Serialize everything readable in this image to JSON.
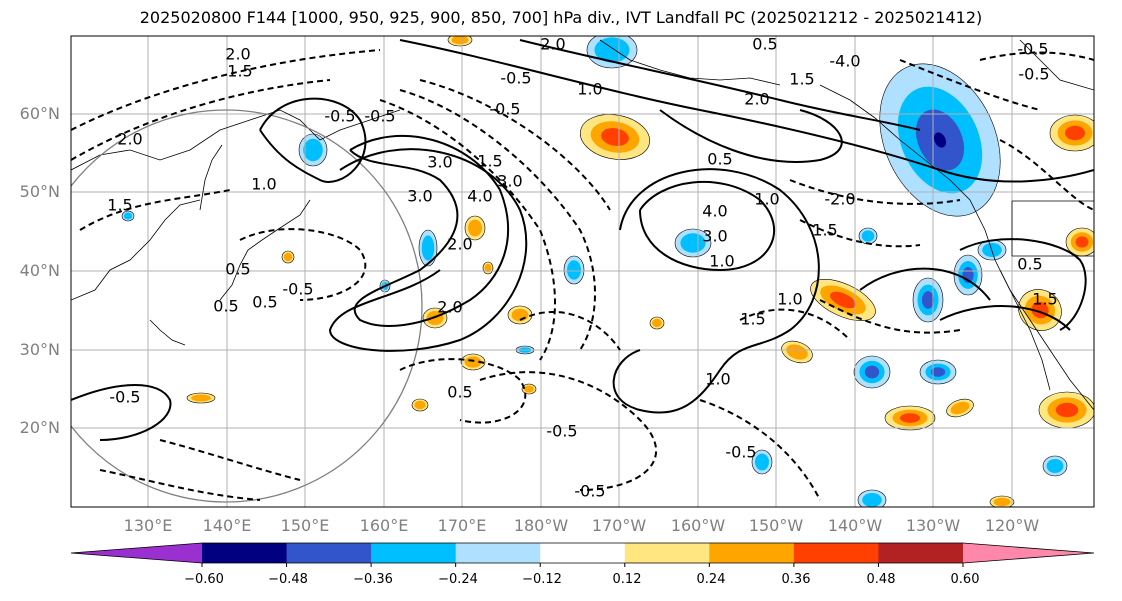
{
  "title": "2025020800 F144 [1000, 950, 925, 900, 850, 700] hPa div., IVT Landfall PC (2025021212 - 2025021412)",
  "lat_labels": [
    "60°N",
    "50°N",
    "40°N",
    "30°N",
    "20°N"
  ],
  "lon_labels": [
    "130°E",
    "140°E",
    "150°E",
    "160°E",
    "170°E",
    "180°W",
    "170°W",
    "160°W",
    "150°W",
    "140°W",
    "130°W",
    "120°W"
  ],
  "contour_labels": [
    "2.0",
    "1.5",
    "2.0",
    "1.5",
    "-0.5",
    "1.0",
    "2.0",
    "-0.5",
    "3.0",
    "1.5",
    "-4.0",
    "2.0",
    "0.5",
    "-0.5",
    "0.5",
    "1.5",
    "-0.5",
    "3.0",
    "4.0",
    "2.0",
    "3.0",
    "4.0",
    "3.0",
    "1.0",
    "-2.0",
    "1.0",
    "1.5",
    "-0.5",
    "0.5",
    "-0.5",
    "0.5",
    "1.0",
    "-0.5",
    "2.0",
    "1.0",
    "1.5",
    "1.0",
    "0.5",
    "-0.5",
    "-0.5",
    "-0.5",
    "-0.5",
    "0.5",
    "0.5",
    "1.5"
  ],
  "colorbar": {
    "ticks": [
      "−0.60",
      "−0.48",
      "−0.36",
      "−0.24",
      "−0.12",
      "0.12",
      "0.24",
      "0.36",
      "0.48",
      "0.60"
    ],
    "colors": [
      "#9b30d0",
      "#000080",
      "#3355cc",
      "#00bfff",
      "#b0e0ff",
      "#ffffff",
      "#ffe680",
      "#ffa500",
      "#ff4000",
      "#b22222",
      "#ff88aa"
    ]
  }
}
